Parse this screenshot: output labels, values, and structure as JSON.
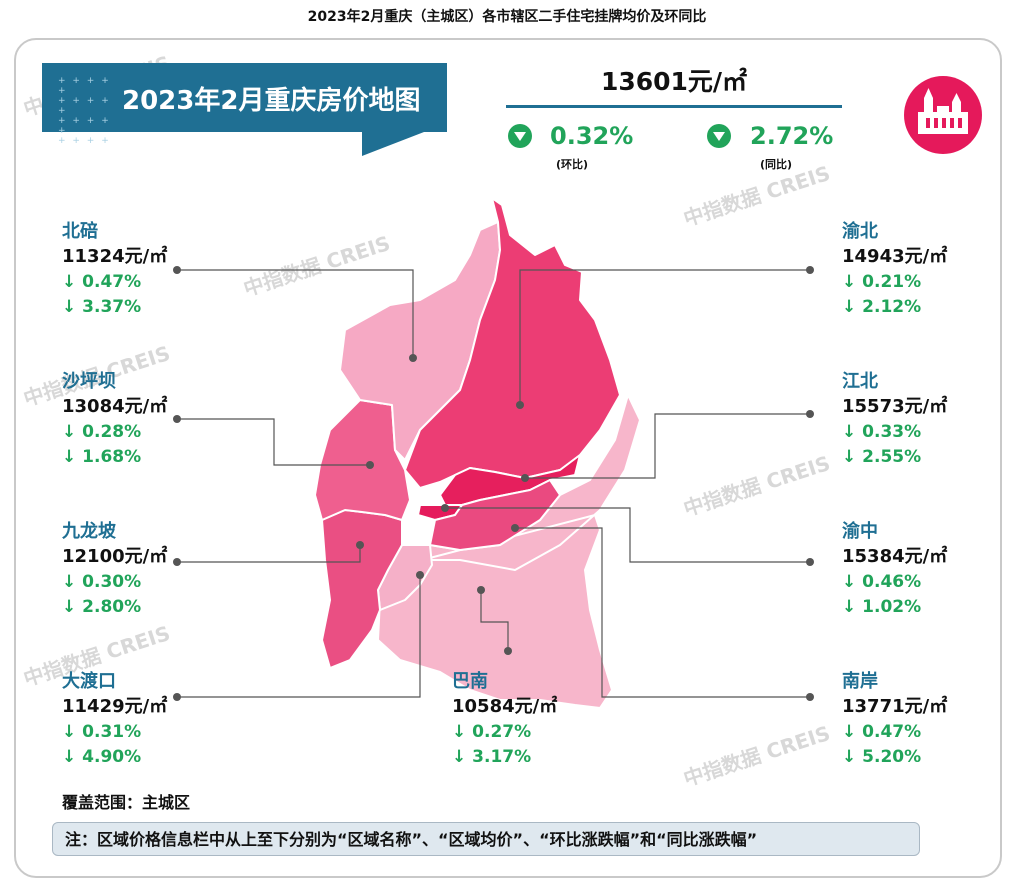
{
  "top_title": "2023年2月重庆（主城区）各市辖区二手住宅挂牌均价及环同比",
  "banner_title": "2023年2月重庆房价地图",
  "overall": {
    "avg_price": "13601元/㎡",
    "mom_value": "0.32%",
    "mom_caption": "(环比)",
    "yoy_value": "2.72%",
    "yoy_caption": "(同比)"
  },
  "districts": [
    {
      "key": "beibei",
      "name": "北碚",
      "price": "11324元/㎡",
      "mom": "↓ 0.47%",
      "yoy": "↓ 3.37%",
      "color": "#f6a9c4"
    },
    {
      "key": "shapingba",
      "name": "沙坪坝",
      "price": "13084元/㎡",
      "mom": "↓ 0.28%",
      "yoy": "↓ 1.68%",
      "color": "#ef5f8f"
    },
    {
      "key": "jiulongpo",
      "name": "九龙坡",
      "price": "12100元/㎡",
      "mom": "↓ 0.30%",
      "yoy": "↓ 2.80%",
      "color": "#ea4f83"
    },
    {
      "key": "dadukou",
      "name": "大渡口",
      "price": "11429元/㎡",
      "mom": "↓ 0.31%",
      "yoy": "↓ 4.90%",
      "color": "#f5b0c8"
    },
    {
      "key": "banan",
      "name": "巴南",
      "price": "10584元/㎡",
      "mom": "↓ 0.27%",
      "yoy": "↓ 3.17%",
      "color": "#f7b6cb"
    },
    {
      "key": "yubei",
      "name": "渝北",
      "price": "14943元/㎡",
      "mom": "↓ 0.21%",
      "yoy": "↓ 2.12%",
      "color": "#ec3d74"
    },
    {
      "key": "jiangbei",
      "name": "江北",
      "price": "15573元/㎡",
      "mom": "↓ 0.33%",
      "yoy": "↓ 2.55%",
      "color": "#e61f5d"
    },
    {
      "key": "yuzhong",
      "name": "渝中",
      "price": "15384元/㎡",
      "mom": "↓ 0.46%",
      "yoy": "↓ 1.02%",
      "color": "#e51b5c"
    },
    {
      "key": "nanan",
      "name": "南岸",
      "price": "13771元/㎡",
      "mom": "↓ 0.47%",
      "yoy": "↓ 5.20%",
      "color": "#ea4a80"
    }
  ],
  "coverage": "覆盖范围：主城区",
  "note": "注：区域价格信息栏中从上至下分别为“区域名称”、“区域均价”、“环比涨跌幅”和“同比涨跌幅”",
  "watermark": "中指数据 CREIS",
  "colors": {
    "brand_blue": "#1f6f93",
    "down_green": "#21a45a",
    "badge_red": "#e5195b"
  }
}
